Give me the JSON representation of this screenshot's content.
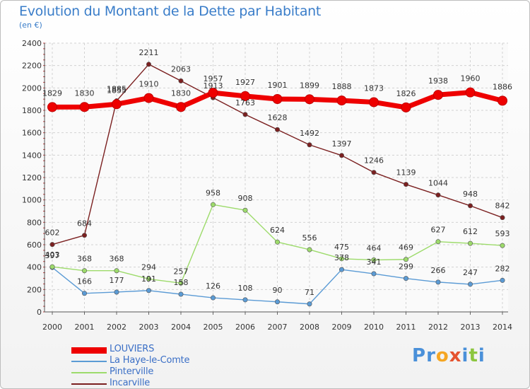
{
  "header": {
    "title": "Evolution du Montant de la Dette par Habitant",
    "subtitle": "(en €)"
  },
  "logo": {
    "text": "Proxiti",
    "letters": [
      {
        "char": "P",
        "color": "#4a90d9"
      },
      {
        "char": "r",
        "color": "#4a90d9"
      },
      {
        "char": "o",
        "color": "#f5a623"
      },
      {
        "char": "x",
        "color": "#e5532f"
      },
      {
        "char": "i",
        "color": "#4a90d9"
      },
      {
        "char": "t",
        "color": "#8cc63f"
      },
      {
        "char": "i",
        "color": "#4a90d9"
      }
    ]
  },
  "chart_data": {
    "type": "line",
    "title": "Evolution du Montant de la Dette par Habitant",
    "subtitle": "(en €)",
    "x": [
      "2000",
      "2001",
      "2002",
      "2003",
      "2004",
      "2005",
      "2006",
      "2007",
      "2008",
      "2009",
      "2010",
      "2011",
      "2012",
      "2013",
      "2014"
    ],
    "yticks": [
      0,
      200,
      400,
      600,
      800,
      1000,
      1200,
      1400,
      1600,
      1800,
      2000,
      2200,
      2400
    ],
    "ylim": [
      0,
      2400
    ],
    "grid": true,
    "legend_position": "bottom-left",
    "series": [
      {
        "name": "LOUVIERS",
        "color": "#ee0000",
        "emphasis": true,
        "values": [
          1829,
          1830,
          1855,
          1910,
          1830,
          1957,
          1927,
          1901,
          1899,
          1888,
          1873,
          1826,
          1938,
          1960,
          1886
        ]
      },
      {
        "name": "La Haye-le-Comte",
        "color": "#5b9bd5",
        "values": [
          397,
          166,
          177,
          191,
          158,
          126,
          108,
          90,
          71,
          378,
          341,
          299,
          266,
          247,
          282
        ]
      },
      {
        "name": "Pinterville",
        "color": "#9ddb6b",
        "values": [
          403,
          368,
          368,
          294,
          257,
          958,
          908,
          624,
          556,
          475,
          464,
          469,
          627,
          612,
          593
        ]
      },
      {
        "name": "Incarville",
        "color": "#7b2020",
        "values": [
          602,
          684,
          1885,
          2211,
          2063,
          1913,
          1763,
          1628,
          1492,
          1397,
          1246,
          1139,
          1044,
          948,
          842
        ]
      }
    ]
  }
}
